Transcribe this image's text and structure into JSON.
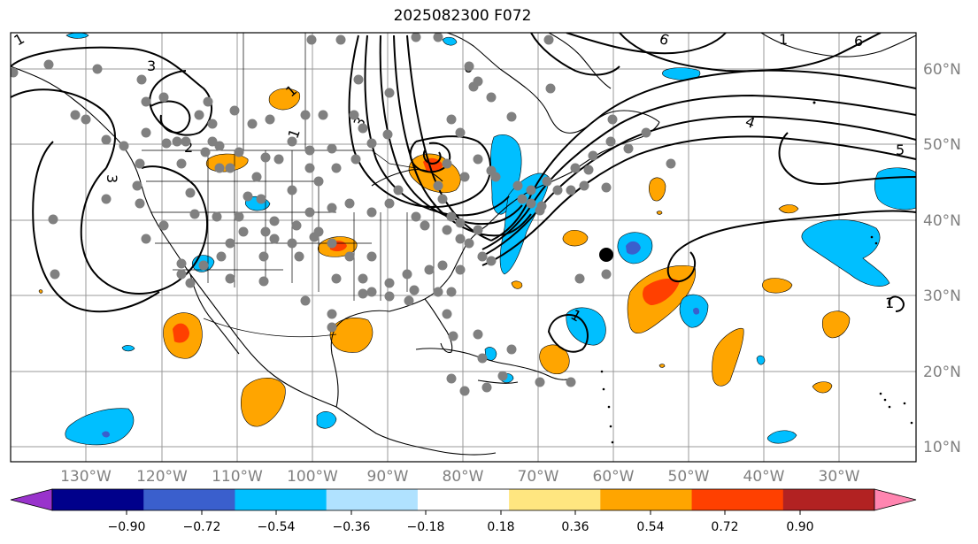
{
  "title": "2025082300 F072",
  "map": {
    "lat_labels": [
      "60°N",
      "50°N",
      "40°N",
      "30°N",
      "20°N",
      "10°N"
    ],
    "lon_labels": [
      "130°W",
      "120°W",
      "110°W",
      "100°W",
      "90°W",
      "80°W",
      "70°W",
      "60°W",
      "50°W",
      "40°W",
      "30°W"
    ],
    "contour_labels": [
      "1",
      "2",
      "3",
      "3",
      "3",
      "4",
      "5",
      "6",
      "6",
      "6",
      "1",
      "1",
      "1",
      "1",
      "1"
    ],
    "highlighted_location": "black-dot-near-60W-35N"
  },
  "colorbar": {
    "ticks": [
      "−0.90",
      "−0.72",
      "−0.54",
      "−0.36",
      "−0.18",
      "0.18",
      "0.36",
      "0.54",
      "0.72",
      "0.90"
    ],
    "colors": [
      "#9933cc",
      "#00008b",
      "#3a5fcd",
      "#00bfff",
      "#b0e2ff",
      "#ffffff",
      "#ffe680",
      "#ffa500",
      "#ff4000",
      "#b22222",
      "#ff85b0"
    ]
  }
}
